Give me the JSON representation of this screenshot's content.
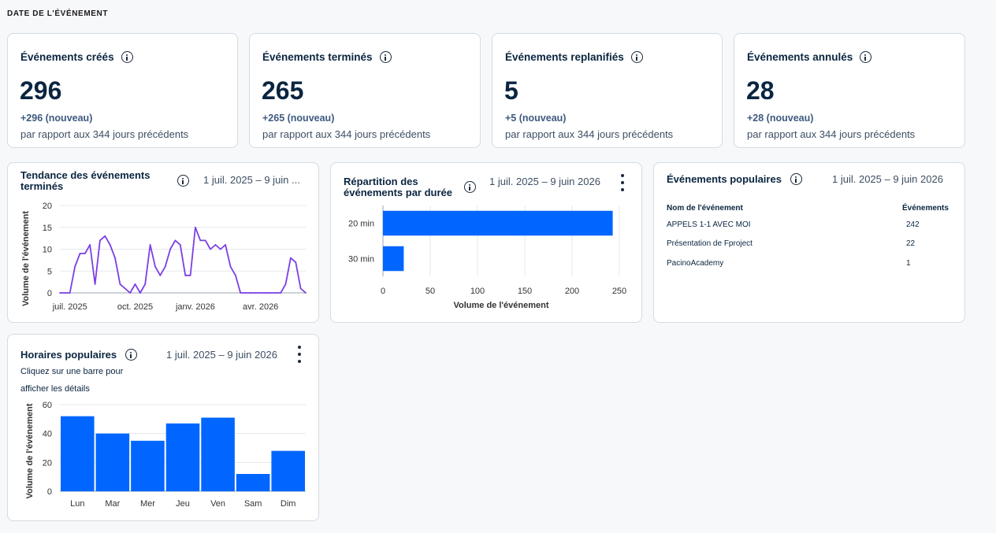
{
  "section_label": "DATE DE L'ÉVÉNEMENT",
  "kpis": [
    {
      "title": "Événements créés",
      "value": "296",
      "delta": "+296 (nouveau)",
      "compare": "par rapport aux 344 jours précédents"
    },
    {
      "title": "Événements terminés",
      "value": "265",
      "delta": "+265 (nouveau)",
      "compare": "par rapport aux 344 jours précédents"
    },
    {
      "title": "Événements replanifiés",
      "value": "5",
      "delta": "+5 (nouveau)",
      "compare": "par rapport aux 344 jours précédents"
    },
    {
      "title": "Événements annulés",
      "value": "28",
      "delta": "+28 (nouveau)",
      "compare": "par rapport aux 344 jours précédents"
    }
  ],
  "trend": {
    "title": "Tendance des événements terminés",
    "date": "1 juil. 2025 – 9 juin ..."
  },
  "duration": {
    "title": "Répartition des événements par durée",
    "date": "1 juil. 2025 – 9 juin 2026"
  },
  "popular_events": {
    "title": "Événements populaires",
    "date": "1 juil. 2025 – 9 juin 2026",
    "col_name": "Nom de l'événement",
    "col_count": "Événements",
    "rows": [
      {
        "name": "APPELS 1-1 AVEC MOI",
        "count": "242"
      },
      {
        "name": "Présentation de Fproject",
        "count": "22"
      },
      {
        "name": "PacinoAcademy",
        "count": "1"
      }
    ]
  },
  "popular_hours": {
    "title": "Horaires populaires",
    "date": "1 juil. 2025 – 9 juin 2026",
    "hint": "Cliquez sur une barre pour afficher les détails"
  },
  "colors": {
    "accent": "#0066ff",
    "line": "#7b3fe4"
  },
  "chart_data": [
    {
      "type": "line",
      "title": "Tendance des événements terminés",
      "ylabel": "Volume de l'événement",
      "xlabel": "",
      "ylim": [
        0,
        20
      ],
      "yticks": [
        0,
        5,
        10,
        15,
        20
      ],
      "xtick_labels": [
        "juil. 2025",
        "oct. 2025",
        "janv. 2026",
        "avr. 2026"
      ],
      "xtick_index": [
        2,
        15,
        27,
        40
      ],
      "grid": true,
      "series": [
        {
          "values": [
            0,
            0,
            0,
            6,
            9,
            9,
            11,
            2,
            12,
            13,
            11,
            8,
            2,
            1,
            0,
            2,
            0,
            2,
            11,
            6,
            4,
            6,
            10,
            12,
            11,
            4,
            4,
            15,
            12,
            12,
            10,
            11,
            10,
            11,
            6,
            4,
            0,
            0,
            0,
            0,
            0,
            0,
            0,
            0,
            0,
            2,
            8,
            7,
            1,
            0
          ]
        }
      ]
    },
    {
      "type": "bar",
      "orientation": "horizontal",
      "title": "Répartition des événements par durée",
      "categories": [
        "20 min",
        "30 min"
      ],
      "values": [
        243,
        22
      ],
      "xlabel": "Volume de l'événement",
      "xlim": [
        0,
        250
      ],
      "xticks": [
        0,
        50,
        100,
        150,
        200,
        250
      ],
      "grid": true
    },
    {
      "type": "bar",
      "title": "Horaires populaires",
      "categories": [
        "Lun",
        "Mar",
        "Mer",
        "Jeu",
        "Ven",
        "Sam",
        "Dim"
      ],
      "values": [
        52,
        40,
        35,
        47,
        51,
        12,
        28
      ],
      "ylabel": "Volume de l'événement",
      "ylim": [
        0,
        60
      ],
      "yticks": [
        0,
        20,
        40,
        60
      ],
      "grid": true
    }
  ]
}
